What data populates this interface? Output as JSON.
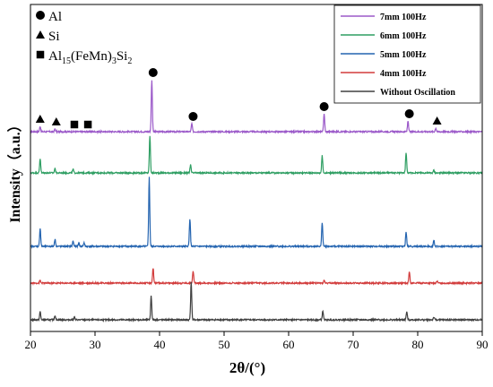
{
  "chart_data": {
    "type": "line",
    "xlabel": "2θ/(°)",
    "ylabel": "Intensity（a.u.）",
    "xlim": [
      20,
      90
    ],
    "x_ticks": [
      20,
      30,
      40,
      50,
      60,
      70,
      80,
      90
    ],
    "legend_position": "top-right",
    "series": [
      {
        "name": "7mm 100Hz",
        "color": "#9b59c9",
        "baseline": 147,
        "peaks": [
          {
            "x": 21.5,
            "h": 6
          },
          {
            "x": 23.8,
            "h": 3
          },
          {
            "x": 38.8,
            "h": 58
          },
          {
            "x": 45.0,
            "h": 9
          },
          {
            "x": 65.5,
            "h": 20
          },
          {
            "x": 78.5,
            "h": 12
          },
          {
            "x": 82.8,
            "h": 4
          }
        ]
      },
      {
        "name": "6mm 100Hz",
        "color": "#2e9e62",
        "baseline": 193,
        "peaks": [
          {
            "x": 21.5,
            "h": 16
          },
          {
            "x": 23.8,
            "h": 5
          },
          {
            "x": 26.6,
            "h": 4
          },
          {
            "x": 38.5,
            "h": 41
          },
          {
            "x": 44.8,
            "h": 9
          },
          {
            "x": 65.2,
            "h": 19
          },
          {
            "x": 78.2,
            "h": 23
          },
          {
            "x": 82.5,
            "h": 3
          }
        ]
      },
      {
        "name": "5mm 100Hz",
        "color": "#2464b0",
        "baseline": 275,
        "peaks": [
          {
            "x": 21.5,
            "h": 20
          },
          {
            "x": 23.8,
            "h": 8
          },
          {
            "x": 26.6,
            "h": 6
          },
          {
            "x": 27.5,
            "h": 4
          },
          {
            "x": 28.3,
            "h": 4
          },
          {
            "x": 38.4,
            "h": 77
          },
          {
            "x": 44.7,
            "h": 31
          },
          {
            "x": 65.2,
            "h": 27
          },
          {
            "x": 78.2,
            "h": 16
          },
          {
            "x": 82.5,
            "h": 7
          }
        ]
      },
      {
        "name": "4mm 100Hz",
        "color": "#d23c3c",
        "baseline": 316,
        "peaks": [
          {
            "x": 21.5,
            "h": 3
          },
          {
            "x": 39.0,
            "h": 17
          },
          {
            "x": 45.2,
            "h": 14
          },
          {
            "x": 65.5,
            "h": 3
          },
          {
            "x": 78.7,
            "h": 13
          },
          {
            "x": 83.0,
            "h": 2
          }
        ]
      },
      {
        "name": "Without Oscillation",
        "color": "#404040",
        "baseline": 357,
        "peaks": [
          {
            "x": 21.5,
            "h": 9
          },
          {
            "x": 23.8,
            "h": 5
          },
          {
            "x": 26.8,
            "h": 3
          },
          {
            "x": 38.7,
            "h": 27
          },
          {
            "x": 44.9,
            "h": 43
          },
          {
            "x": 65.3,
            "h": 10
          },
          {
            "x": 78.3,
            "h": 9
          },
          {
            "x": 82.5,
            "h": 3
          }
        ]
      }
    ],
    "phase_legend": [
      {
        "symbol": "circle",
        "label": "Al"
      },
      {
        "symbol": "triangle",
        "label": "Si"
      },
      {
        "symbol": "square",
        "label": "Al",
        "sub1": "15",
        "mid": "(FeMn)",
        "sub2": "3",
        "tail": "Si",
        "sub3": "2"
      }
    ],
    "peak_markers": [
      {
        "symbol": "triangle",
        "x": 21.5
      },
      {
        "symbol": "triangle",
        "x": 24.0
      },
      {
        "symbol": "square",
        "x": 26.8
      },
      {
        "symbol": "square",
        "x": 28.9
      },
      {
        "symbol": "circle",
        "x": 39.0
      },
      {
        "symbol": "circle",
        "x": 45.2
      },
      {
        "symbol": "circle",
        "x": 65.5
      },
      {
        "symbol": "circle",
        "x": 78.7
      },
      {
        "symbol": "triangle",
        "x": 83.0
      }
    ]
  }
}
